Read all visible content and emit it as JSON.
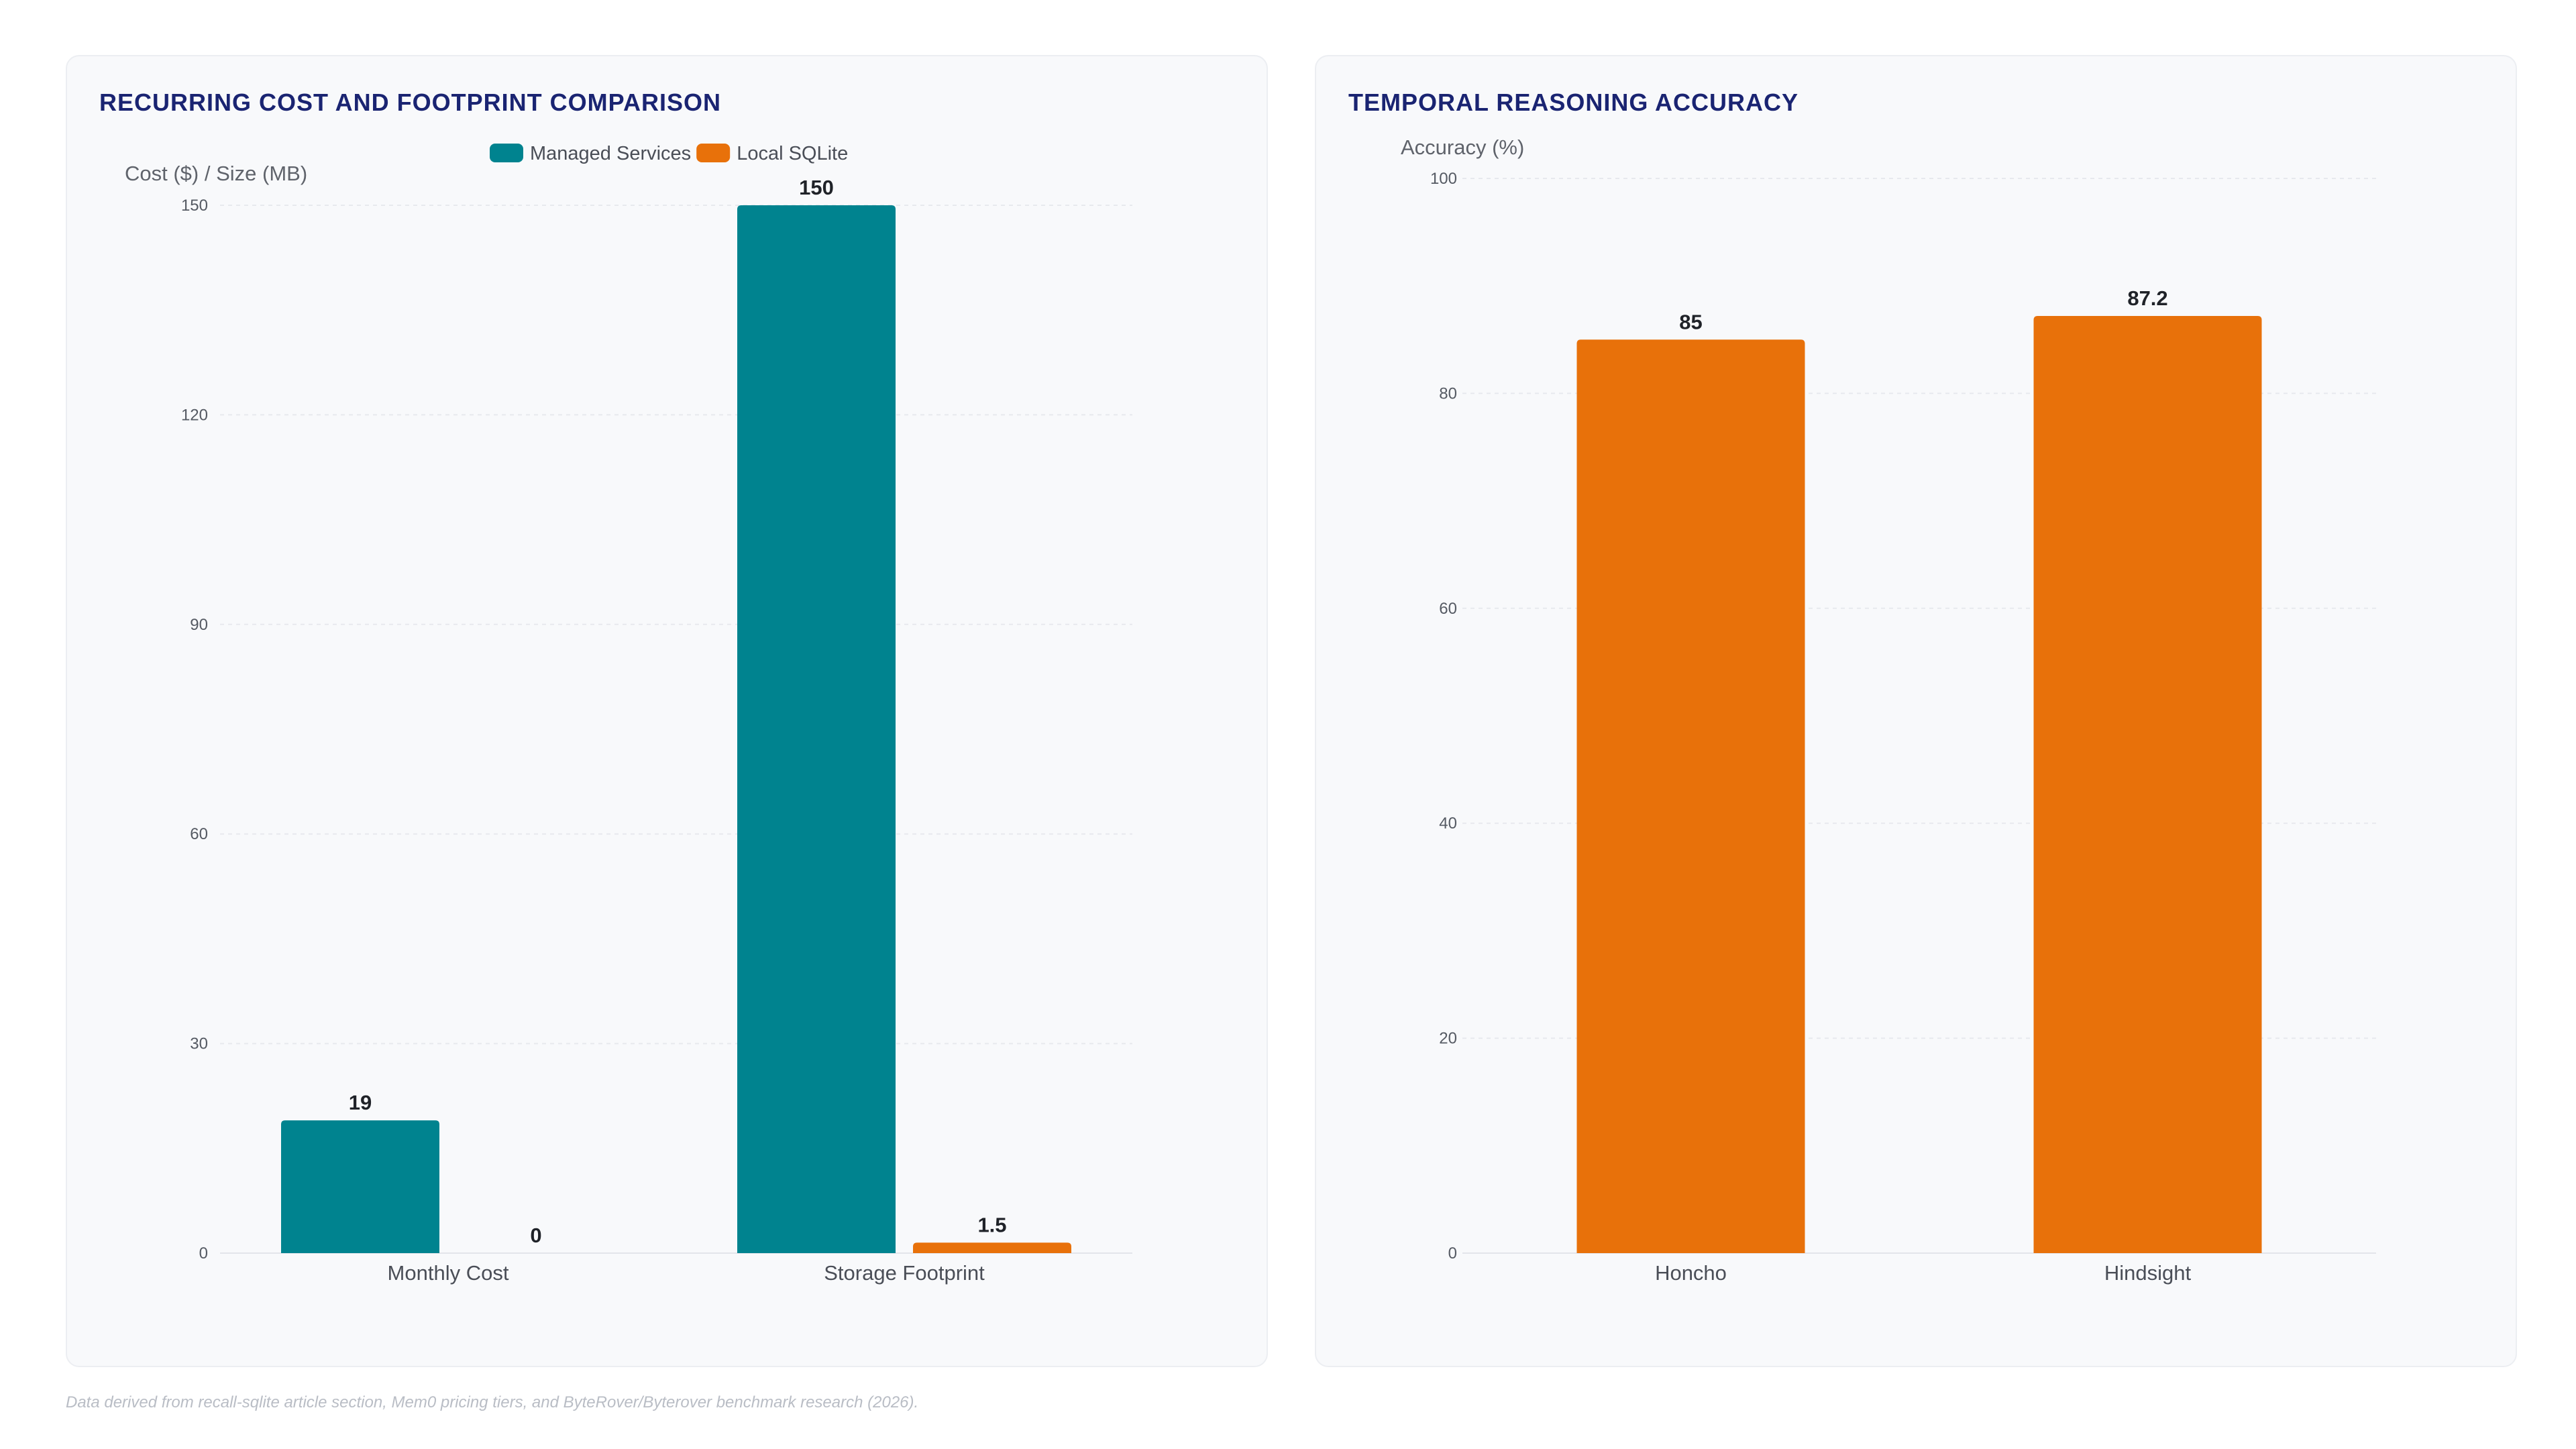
{
  "charts": [
    {
      "panel_title": "RECURRING COST AND FOOTPRINT COMPARISON",
      "chart_data": {
        "type": "bar",
        "title": "RECURRING COST AND FOOTPRINT COMPARISON",
        "ylabel": "Cost ($) / Size (MB)",
        "xlabel": "",
        "categories": [
          "Monthly Cost",
          "Storage Footprint"
        ],
        "series": [
          {
            "name": "Managed Services",
            "color": "#00838f",
            "values": [
              19,
              150
            ]
          },
          {
            "name": "Local SQLite",
            "color": "#e8710a",
            "values": [
              0,
              1.5
            ]
          }
        ],
        "ylim": [
          0,
          150
        ],
        "yticks": [
          0,
          30,
          60,
          90,
          120,
          150
        ],
        "grid": true,
        "legend": "top-center",
        "data_labels": true
      }
    },
    {
      "panel_title": "TEMPORAL REASONING ACCURACY",
      "chart_data": {
        "type": "bar",
        "title": "TEMPORAL REASONING ACCURACY",
        "ylabel": "Accuracy (%)",
        "xlabel": "",
        "categories": [
          "Honcho",
          "Hindsight"
        ],
        "series": [
          {
            "color": "#e8710a",
            "values": [
              85,
              87.2
            ]
          }
        ],
        "ylim": [
          0,
          100
        ],
        "yticks": [
          0,
          20,
          40,
          60,
          80,
          100
        ],
        "grid": true,
        "legend": "none",
        "data_labels": true
      }
    }
  ],
  "footnote": "Data derived from recall-sqlite article section, Mem0 pricing tiers, and ByteRover/Byterover benchmark research (2026)."
}
